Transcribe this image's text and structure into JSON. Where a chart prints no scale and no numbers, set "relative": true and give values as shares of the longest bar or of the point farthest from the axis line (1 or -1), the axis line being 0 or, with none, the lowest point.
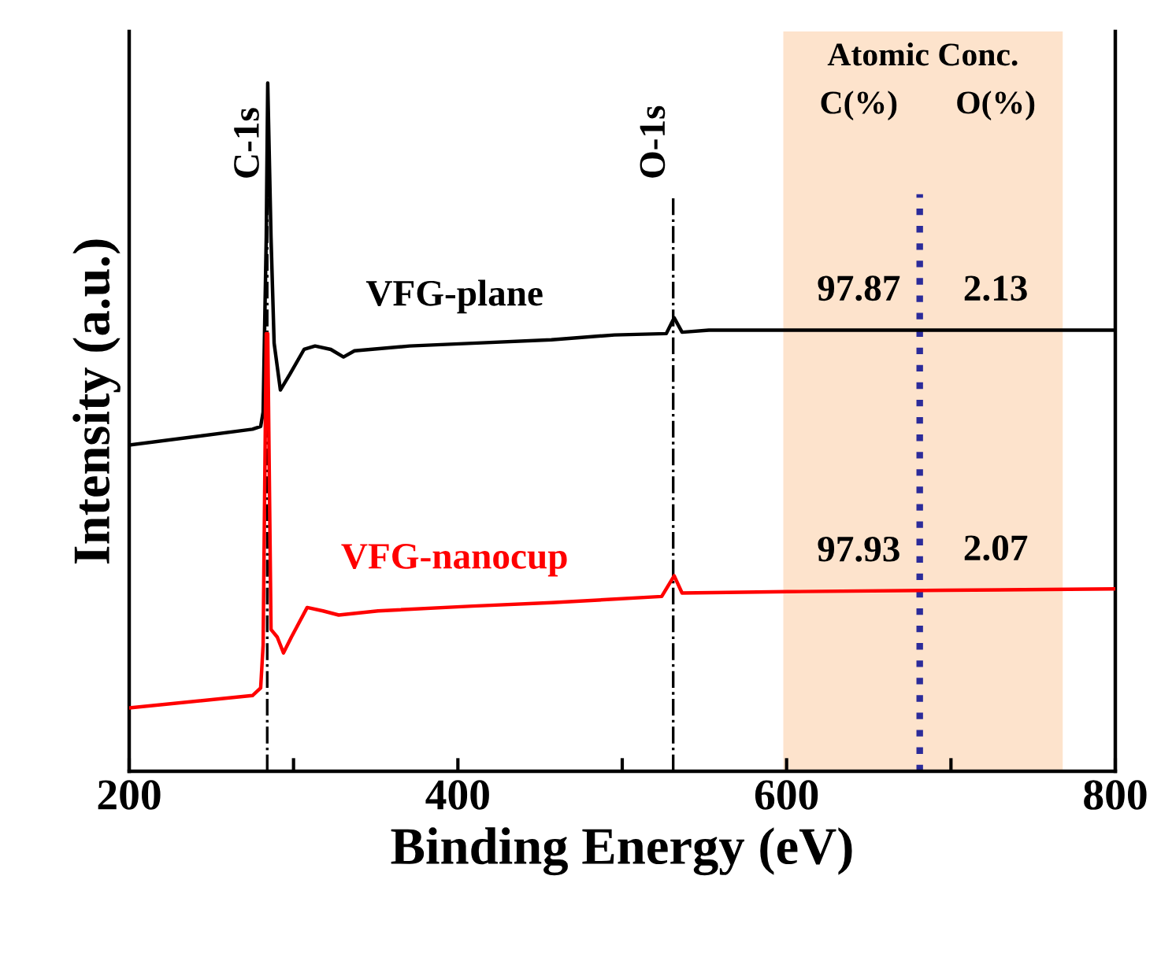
{
  "chart_data": {
    "type": "line",
    "relative": true,
    "xlabel": "Binding Energy (eV)",
    "ylabel": "Intensity (a.u.)",
    "xlim": [
      200,
      800
    ],
    "xticks": [
      200,
      {
        "value": 300,
        "label": null
      },
      400,
      {
        "value": 500,
        "label": null
      },
      600,
      {
        "value": 700,
        "label": null
      },
      800
    ],
    "tick_labels": "x",
    "grid": false,
    "legend": false,
    "marker": "none",
    "line_style": "solid",
    "series": [
      {
        "name": "VFG-plane",
        "color": "#000000",
        "x": [
          200,
          275,
          280,
          281.5,
          283.4,
          284.3,
          286.3,
          288.2,
          292,
          297.8,
          306.4,
          313.1,
          322.7,
          330.4,
          337.1,
          370.6,
          409,
          456.9,
          495.2,
          526.8,
          531.6,
          536.4,
          552.7,
          600.6,
          696.5,
          800
        ],
        "values": [
          0.474,
          0.497,
          0.501,
          0.522,
          0.776,
          1.0,
          0.776,
          0.622,
          0.554,
          0.577,
          0.613,
          0.618,
          0.613,
          0.602,
          0.611,
          0.618,
          0.622,
          0.627,
          0.634,
          0.636,
          0.659,
          0.638,
          0.641,
          0.641,
          0.641,
          0.641
        ]
      },
      {
        "name": "VFG-nanocup",
        "color": "#ff0000",
        "x": [
          200,
          275,
          280,
          281.5,
          283.4,
          284.3,
          286.3,
          290.1,
          293.9,
          298.7,
          308.3,
          317.9,
          327.5,
          351.4,
          409,
          456.9,
          524,
          531.6,
          536.4,
          600.6,
          696.5,
          800
        ],
        "values": [
          0.092,
          0.11,
          0.121,
          0.183,
          0.636,
          0.636,
          0.206,
          0.195,
          0.172,
          0.195,
          0.238,
          0.233,
          0.227,
          0.233,
          0.24,
          0.245,
          0.254,
          0.284,
          0.259,
          0.261,
          0.263,
          0.265
        ]
      }
    ],
    "ref_lines": [
      {
        "axis": "x",
        "value": 284,
        "label": "C-1s",
        "color": "#000000",
        "line_style": "dashdot"
      },
      {
        "axis": "x",
        "value": 531,
        "label": "O-1s",
        "color": "#000000",
        "line_style": "dashdot"
      },
      {
        "axis": "x",
        "value": 681,
        "color": "#2b2b9a",
        "line_style": "dotted"
      }
    ],
    "bands": [
      {
        "axis": "x",
        "from": 598,
        "to": 768,
        "color": "#fde3cc"
      }
    ],
    "annotations": [
      "Atomic Conc.",
      "C(%)",
      "O(%)",
      "97.87",
      "2.13",
      "97.93",
      "2.07"
    ]
  }
}
